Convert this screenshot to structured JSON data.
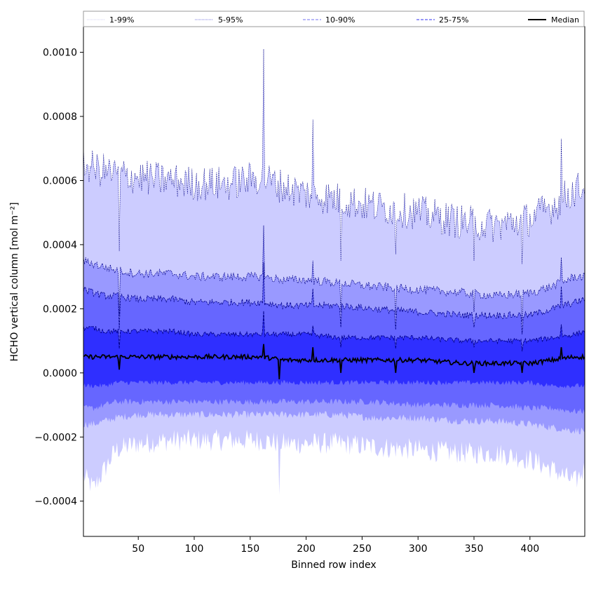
{
  "chart_data": {
    "type": "area",
    "xlabel": "Binned row index",
    "ylabel": "HCHO vertical column [mol m⁻²]",
    "xlim": [
      1,
      449
    ],
    "ylim": [
      -0.00051,
      0.00108
    ],
    "xticks": [
      50,
      100,
      150,
      200,
      250,
      300,
      350,
      400
    ],
    "xtick_labels": [
      "50",
      "100",
      "150",
      "200",
      "250",
      "300",
      "350",
      "400"
    ],
    "yticks": [
      -0.0004,
      -0.0002,
      0.0,
      0.0002,
      0.0004,
      0.0006,
      0.0008,
      0.001
    ],
    "ytick_labels": [
      "−0.0004",
      "−0.0002",
      "0.0000",
      "0.0002",
      "0.0004",
      "0.0006",
      "0.0008",
      "0.0010"
    ],
    "legend": {
      "placement": "top",
      "entries": [
        {
          "label": "1-99%",
          "color": "#d0d0f0",
          "style": "dotted"
        },
        {
          "label": "5-95%",
          "color": "#7a7ae0",
          "style": "dotted"
        },
        {
          "label": "10-90%",
          "color": "#7070f0",
          "style": "dashed"
        },
        {
          "label": "25-75%",
          "color": "#3030f0",
          "style": "dashed"
        },
        {
          "label": "Median",
          "color": "#000000",
          "style": "solid"
        }
      ]
    },
    "band_colors": {
      "p1_99": "#ccccff",
      "p5_95": "#9999ff",
      "p10_90": "#6666ff",
      "p25_75": "#2f2fff",
      "median": "#000000",
      "edge": "#00008b"
    },
    "x_profile": [
      1,
      10,
      20,
      30,
      50,
      80,
      100,
      130,
      160,
      180,
      200,
      230,
      260,
      300,
      340,
      370,
      400,
      420,
      440,
      449
    ],
    "percentiles": {
      "p99": [
        0.00065,
        0.00064,
        0.00063,
        0.00062,
        0.00061,
        0.0006,
        0.00059,
        0.00059,
        0.00061,
        0.00058,
        0.00056,
        0.00054,
        0.00052,
        0.0005,
        0.00047,
        0.00046,
        0.00048,
        0.00052,
        0.00057,
        0.00058
      ],
      "p95": [
        0.00035,
        0.00034,
        0.00033,
        0.00032,
        0.00031,
        0.00031,
        0.0003,
        0.0003,
        0.0003,
        0.00029,
        0.00029,
        0.00028,
        0.00027,
        0.00026,
        0.00025,
        0.00024,
        0.00025,
        0.00027,
        0.0003,
        0.0003
      ],
      "p90": [
        0.00026,
        0.00025,
        0.00024,
        0.00024,
        0.00023,
        0.00023,
        0.00022,
        0.00022,
        0.00022,
        0.00021,
        0.00021,
        0.00021,
        0.0002,
        0.00019,
        0.00018,
        0.00018,
        0.00018,
        0.0002,
        0.00022,
        0.00023
      ],
      "p75": [
        0.00014,
        0.00014,
        0.00013,
        0.00013,
        0.00013,
        0.00013,
        0.00012,
        0.00012,
        0.00012,
        0.00012,
        0.00012,
        0.00011,
        0.00011,
        0.00011,
        0.0001,
        0.0001,
        0.0001,
        0.00011,
        0.00012,
        0.00013
      ],
      "median": [
        5e-05,
        5e-05,
        5e-05,
        5e-05,
        5e-05,
        5e-05,
        5e-05,
        5e-05,
        5e-05,
        4e-05,
        4e-05,
        4e-05,
        4e-05,
        4e-05,
        3e-05,
        3e-05,
        3e-05,
        4e-05,
        5e-05,
        5e-05
      ],
      "p25": [
        -4e-05,
        -4e-05,
        -4e-05,
        -3e-05,
        -3e-05,
        -3e-05,
        -3e-05,
        -3e-05,
        -3e-05,
        -3e-05,
        -3e-05,
        -3e-05,
        -3e-05,
        -3e-05,
        -3e-05,
        -3e-05,
        -3e-05,
        -4e-05,
        -4e-05,
        -4e-05
      ],
      "p10": [
        -0.00011,
        -0.00011,
        -0.0001,
        -9e-05,
        -9e-05,
        -9e-05,
        -9e-05,
        -9e-05,
        -9e-05,
        -9e-05,
        -9e-05,
        -9e-05,
        -9e-05,
        -0.0001,
        -0.0001,
        -0.0001,
        -0.00011,
        -0.00011,
        -0.00012,
        -0.00012
      ],
      "p5": [
        -0.00016,
        -0.00016,
        -0.00015,
        -0.00014,
        -0.00013,
        -0.00013,
        -0.00013,
        -0.00013,
        -0.00013,
        -0.00013,
        -0.00013,
        -0.00013,
        -0.00014,
        -0.00014,
        -0.00015,
        -0.00015,
        -0.00016,
        -0.00017,
        -0.00018,
        -0.00018
      ],
      "p1": [
        -0.00032,
        -0.00036,
        -0.0003,
        -0.00024,
        -0.00022,
        -0.00021,
        -0.00021,
        -0.00021,
        -0.00021,
        -0.00022,
        -0.00022,
        -0.00022,
        -0.00023,
        -0.00024,
        -0.00025,
        -0.00025,
        -0.00027,
        -0.0003,
        -0.00034,
        -0.0003
      ]
    },
    "spikes": [
      {
        "x": 33,
        "p99": 0.00038,
        "p95": 0.00018,
        "median": 1e-05
      },
      {
        "x": 162,
        "p99": 0.00101,
        "p95": 0.00046,
        "median": 9e-05
      },
      {
        "x": 176,
        "p1": -0.00038,
        "median": -2e-05
      },
      {
        "x": 206,
        "p99": 0.00079,
        "p95": 0.00035,
        "median": 8e-05
      },
      {
        "x": 231,
        "p99": 0.00035,
        "p95": 0.00019,
        "median": 0.0
      },
      {
        "x": 280,
        "p99": 0.00037,
        "p95": 0.00018,
        "median": 0.0
      },
      {
        "x": 350,
        "p99": 0.00035,
        "p95": 0.00019,
        "median": 0.0
      },
      {
        "x": 393,
        "p99": 0.00034,
        "p95": 0.00016,
        "median": 0.0
      },
      {
        "x": 428,
        "p99": 0.00073,
        "p95": 0.00036,
        "median": 8e-05
      }
    ]
  }
}
